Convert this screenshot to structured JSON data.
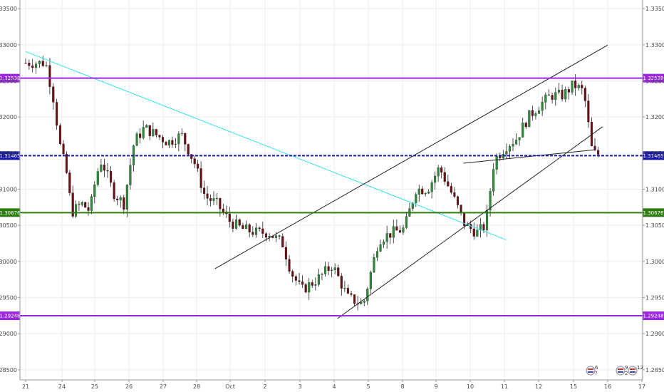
{
  "chart_data": {
    "type": "candlestick",
    "price_axis": {
      "ticks": [
        "1.33500",
        "1.33000",
        "1.32500",
        "1.32000",
        "1.31500",
        "1.31000",
        "1.30500",
        "1.30000",
        "1.29500",
        "1.29000",
        "1.28500"
      ],
      "ylim": [
        1.2836,
        1.3362
      ]
    },
    "time_axis": {
      "labels": [
        "21",
        "24",
        "25",
        "26",
        "27",
        "28",
        "Oct",
        "2",
        "3",
        "4",
        "5",
        "8",
        "9",
        "10",
        "11",
        "12",
        "15",
        "16",
        "17"
      ],
      "grid": true
    },
    "levels": [
      {
        "label": "1.32538",
        "value": 1.32538,
        "color": "#9c27e0",
        "style": "solid"
      },
      {
        "label": "1.31465",
        "value": 1.31465,
        "color": "#1a1aa8",
        "style": "dashed"
      },
      {
        "label": "1.30676",
        "value": 1.30676,
        "color": "#2e7d12",
        "style": "solid"
      },
      {
        "label": "1.29248",
        "value": 1.29248,
        "color": "#9c27e0",
        "style": "solid"
      }
    ],
    "trendlines": [
      {
        "name": "downtrend",
        "color": "#33e0ee",
        "from": {
          "t": 0.0,
          "price": 1.32905
        },
        "to": {
          "t": 14.05,
          "price": 1.303
        }
      },
      {
        "name": "channel-upper",
        "color": "#222222",
        "from": {
          "t": 5.55,
          "price": 1.299
        },
        "to": {
          "t": 17.0,
          "price": 1.32995
        }
      },
      {
        "name": "channel-lower",
        "color": "#222222",
        "from": {
          "t": 9.1,
          "price": 1.2921
        },
        "to": {
          "t": 16.85,
          "price": 1.31865
        }
      },
      {
        "name": "neckline",
        "color": "#222222",
        "from": {
          "t": 12.8,
          "price": 1.3136
        },
        "to": {
          "t": 16.6,
          "price": 1.31545
        }
      }
    ],
    "path": [
      [
        0.0,
        1.3275
      ],
      [
        0.55,
        1.3275
      ],
      [
        0.75,
        1.323
      ],
      [
        0.95,
        1.316
      ],
      [
        1.15,
        1.312
      ],
      [
        1.3,
        1.3068
      ],
      [
        1.6,
        1.308
      ],
      [
        1.85,
        1.307
      ],
      [
        2.05,
        1.312
      ],
      [
        2.2,
        1.314
      ],
      [
        2.55,
        1.3095
      ],
      [
        2.85,
        1.308
      ],
      [
        3.15,
        1.3165
      ],
      [
        3.45,
        1.3185
      ],
      [
        3.8,
        1.3175
      ],
      [
        4.15,
        1.3165
      ],
      [
        4.55,
        1.3175
      ],
      [
        4.95,
        1.3135
      ],
      [
        5.25,
        1.309
      ],
      [
        5.6,
        1.308
      ],
      [
        6.0,
        1.3055
      ],
      [
        6.35,
        1.3045
      ],
      [
        6.75,
        1.304
      ],
      [
        7.1,
        1.304
      ],
      [
        7.5,
        1.3025
      ],
      [
        7.75,
        1.2985
      ],
      [
        8.05,
        1.296
      ],
      [
        8.5,
        1.2975
      ],
      [
        8.95,
        1.2995
      ],
      [
        9.4,
        1.295
      ],
      [
        9.85,
        1.294
      ],
      [
        10.3,
        1.303
      ],
      [
        10.7,
        1.304
      ],
      [
        11.05,
        1.3045
      ],
      [
        11.4,
        1.31
      ],
      [
        11.75,
        1.31
      ],
      [
        12.1,
        1.313
      ],
      [
        12.5,
        1.309
      ],
      [
        12.85,
        1.305
      ],
      [
        13.2,
        1.304
      ],
      [
        13.45,
        1.305
      ],
      [
        13.7,
        1.314
      ],
      [
        14.05,
        1.316
      ],
      [
        14.35,
        1.317
      ],
      [
        14.7,
        1.32
      ],
      [
        15.0,
        1.3215
      ],
      [
        15.35,
        1.323
      ],
      [
        15.7,
        1.323
      ],
      [
        16.0,
        1.3245
      ],
      [
        16.3,
        1.3235
      ],
      [
        16.55,
        1.315
      ],
      [
        16.8,
        1.3148
      ]
    ],
    "footer_badges": [
      {
        "count": "6",
        "label": "?"
      },
      {
        "count": "9",
        "label": "2"
      },
      {
        "count": "12",
        "label": ""
      }
    ]
  }
}
